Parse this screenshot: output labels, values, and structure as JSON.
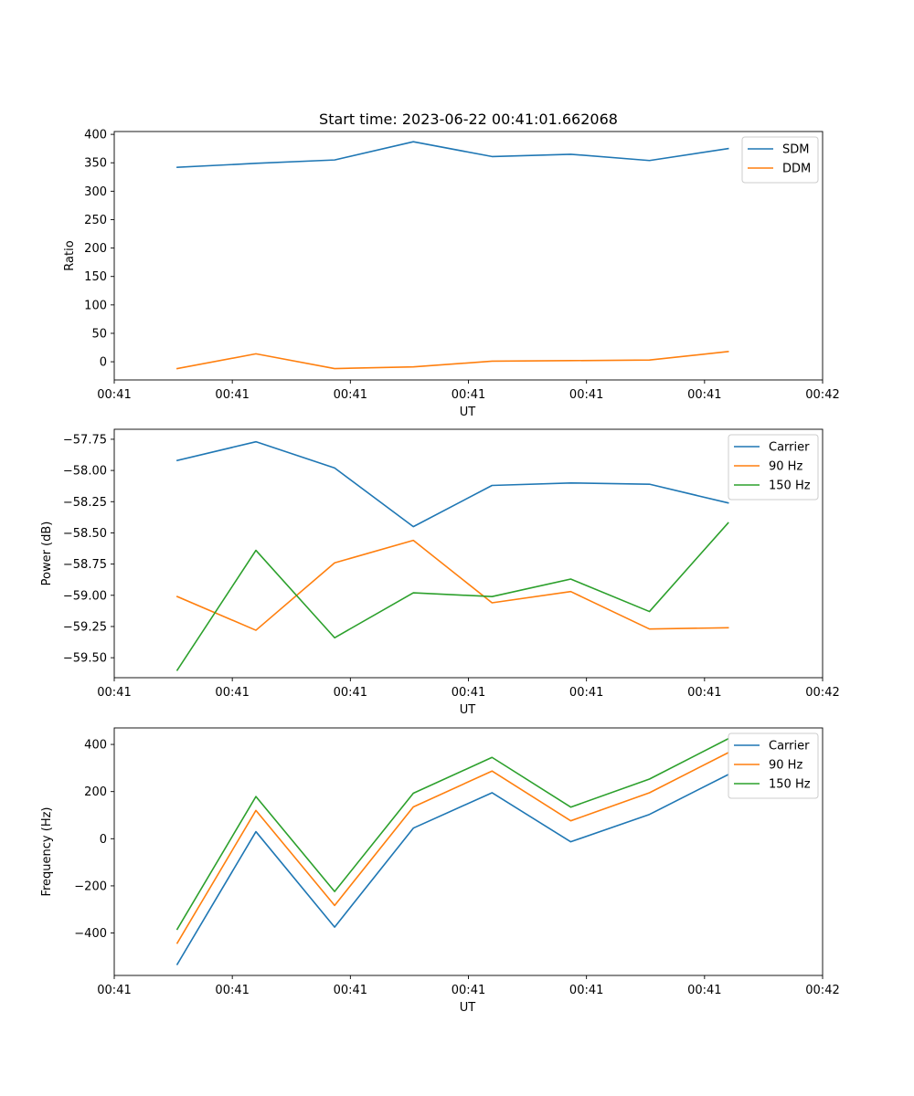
{
  "colors": {
    "blue": "#1f77b4",
    "orange": "#ff7f0e",
    "green": "#2ca02c"
  },
  "chart_data": [
    {
      "type": "line",
      "title": "Start time: 2023-06-22 00:41:01.662068",
      "xlabel": "UT",
      "ylabel": "Ratio",
      "x": [
        1,
        2,
        3,
        4,
        5,
        6,
        7,
        8
      ],
      "xlim": [
        0.2,
        9.2
      ],
      "xtick_values": [
        0.2,
        1.7,
        3.2,
        4.7,
        6.2,
        7.7,
        9.2
      ],
      "xtick_labels": [
        "00:41",
        "00:41",
        "00:41",
        "00:41",
        "00:41",
        "00:41",
        "00:42"
      ],
      "ylim": [
        -32,
        405
      ],
      "yticks": [
        0,
        50,
        100,
        150,
        200,
        250,
        300,
        350,
        400
      ],
      "legend": "top-right",
      "series": [
        {
          "name": "SDM",
          "color": "#1f77b4",
          "values": [
            342,
            349,
            355,
            387,
            361,
            365,
            354,
            375
          ]
        },
        {
          "name": "DDM",
          "color": "#ff7f0e",
          "values": [
            -12,
            14,
            -12,
            -9,
            1,
            2,
            3,
            18
          ]
        }
      ]
    },
    {
      "type": "line",
      "title": "",
      "xlabel": "UT",
      "ylabel": "Power (dB)",
      "x": [
        1,
        2,
        3,
        4,
        5,
        6,
        7,
        8
      ],
      "xlim": [
        0.2,
        9.2
      ],
      "xtick_values": [
        0.2,
        1.7,
        3.2,
        4.7,
        6.2,
        7.7,
        9.2
      ],
      "xtick_labels": [
        "00:41",
        "00:41",
        "00:41",
        "00:41",
        "00:41",
        "00:41",
        "00:42"
      ],
      "ylim": [
        -59.66,
        -57.67
      ],
      "yticks": [
        -59.5,
        -59.25,
        -59.0,
        -58.75,
        -58.5,
        -58.25,
        -58.0,
        -57.75
      ],
      "ytick_labels": [
        "−59.50",
        "−59.25",
        "−59.00",
        "−58.75",
        "−58.50",
        "−58.25",
        "−58.00",
        "−57.75"
      ],
      "legend": "top-right",
      "series": [
        {
          "name": "Carrier",
          "color": "#1f77b4",
          "values": [
            -57.92,
            -57.77,
            -57.98,
            -58.45,
            -58.12,
            -58.1,
            -58.11,
            -58.26
          ]
        },
        {
          "name": "90 Hz",
          "color": "#ff7f0e",
          "values": [
            -59.01,
            -59.28,
            -58.74,
            -58.56,
            -59.06,
            -58.97,
            -59.27,
            -59.26
          ]
        },
        {
          "name": "150 Hz",
          "color": "#2ca02c",
          "values": [
            -59.6,
            -58.64,
            -59.34,
            -58.98,
            -59.01,
            -58.87,
            -59.13,
            -58.42
          ]
        }
      ]
    },
    {
      "type": "line",
      "title": "",
      "xlabel": "UT",
      "ylabel": "Frequency (Hz)",
      "x": [
        1,
        2,
        3,
        4,
        5,
        6,
        7,
        8
      ],
      "xlim": [
        0.2,
        9.2
      ],
      "xtick_values": [
        0.2,
        1.7,
        3.2,
        4.7,
        6.2,
        7.7,
        9.2
      ],
      "xtick_labels": [
        "00:41",
        "00:41",
        "00:41",
        "00:41",
        "00:41",
        "00:41",
        "00:42"
      ],
      "ylim": [
        -580,
        470
      ],
      "yticks": [
        -400,
        -200,
        0,
        200,
        400
      ],
      "ytick_labels": [
        "−400",
        "−200",
        "0",
        "200",
        "400"
      ],
      "legend": "top-right",
      "series": [
        {
          "name": "Carrier",
          "color": "#1f77b4",
          "values": [
            -533,
            30,
            -375,
            45,
            195,
            -13,
            103,
            272
          ]
        },
        {
          "name": "90 Hz",
          "color": "#ff7f0e",
          "values": [
            -443,
            120,
            -283,
            135,
            287,
            76,
            195,
            365
          ]
        },
        {
          "name": "150 Hz",
          "color": "#2ca02c",
          "values": [
            -384,
            179,
            -224,
            193,
            345,
            134,
            253,
            424
          ]
        }
      ]
    }
  ]
}
